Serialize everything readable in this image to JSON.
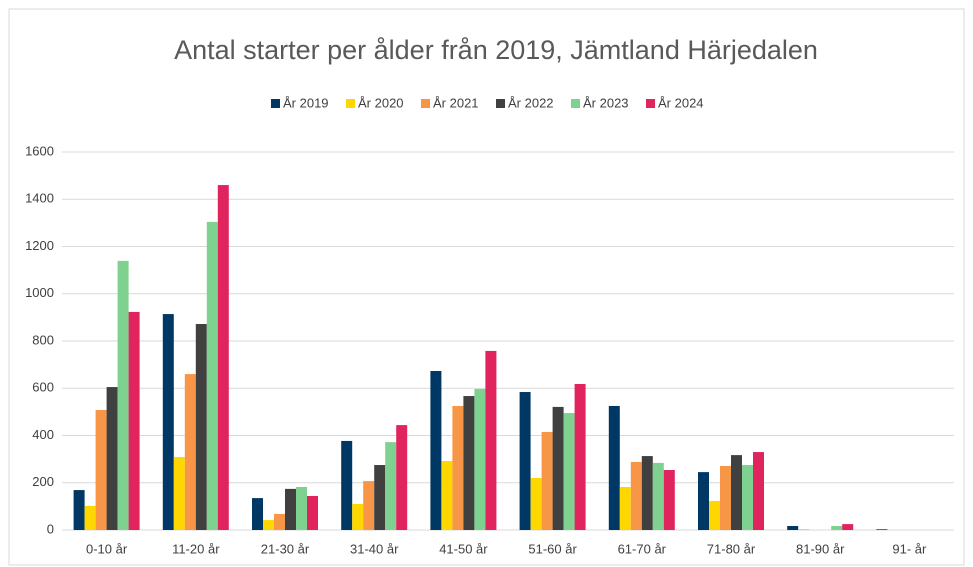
{
  "chart_data": {
    "type": "bar",
    "title": "Antal starter per ålder från 2019, Jämtland Härjedalen",
    "categories": [
      "0-10 år",
      "11-20 år",
      "21-30 år",
      "31-40 år",
      "41-50 år",
      "51-60 år",
      "61-70 år",
      "71-80 år",
      "81-90 år",
      "91- år"
    ],
    "series": [
      {
        "name": "År 2019",
        "color": "#003865",
        "values": [
          169,
          914,
          135,
          377,
          673,
          584,
          525,
          245,
          17,
          3
        ]
      },
      {
        "name": "År 2020",
        "color": "#ffd700",
        "values": [
          102,
          309,
          42,
          110,
          292,
          220,
          182,
          123,
          4,
          0
        ]
      },
      {
        "name": "År 2021",
        "color": "#f79646",
        "values": [
          508,
          660,
          68,
          207,
          525,
          415,
          288,
          271,
          0,
          0
        ]
      },
      {
        "name": "År 2022",
        "color": "#404040",
        "values": [
          605,
          872,
          174,
          275,
          567,
          521,
          313,
          317,
          0,
          0
        ]
      },
      {
        "name": "År 2023",
        "color": "#7fd18f",
        "values": [
          1139,
          1304,
          182,
          372,
          597,
          495,
          284,
          275,
          17,
          0
        ]
      },
      {
        "name": "År 2024",
        "color": "#e0245e",
        "values": [
          923,
          1460,
          144,
          444,
          758,
          618,
          254,
          330,
          25,
          0
        ]
      }
    ],
    "ylim": [
      0,
      1600
    ],
    "yticks": [
      0,
      200,
      400,
      600,
      800,
      1000,
      1200,
      1400,
      1600
    ],
    "grid": true,
    "legend": "top"
  }
}
